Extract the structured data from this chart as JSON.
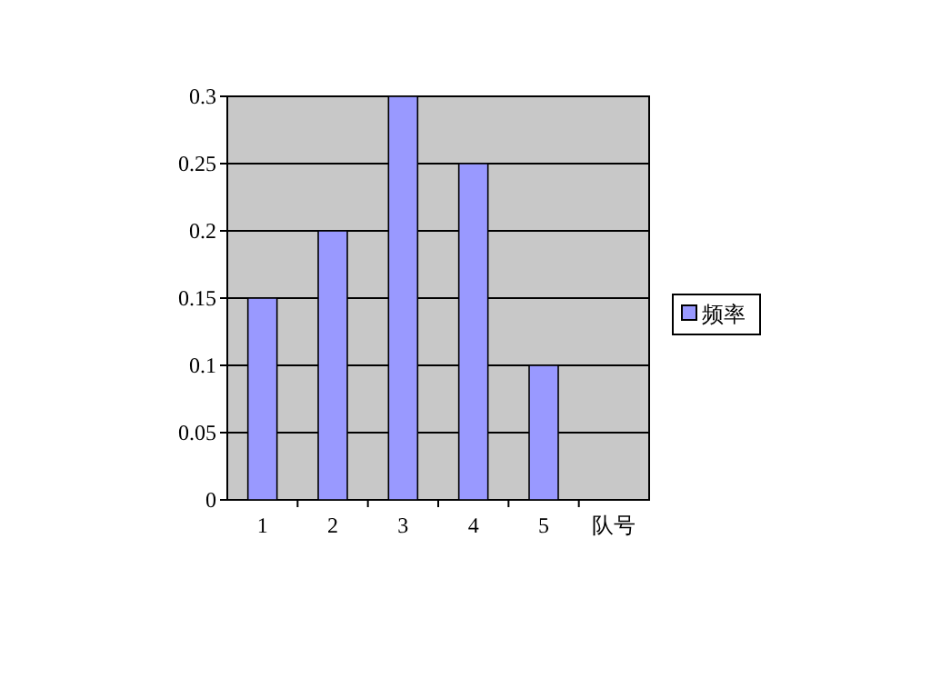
{
  "chart_data": {
    "type": "bar",
    "categories": [
      "1",
      "2",
      "3",
      "4",
      "5"
    ],
    "xlabel": "队号",
    "series": [
      {
        "name": "频率",
        "color": "#9999ff",
        "values": [
          0.15,
          0.2,
          0.3,
          0.25,
          0.1
        ]
      }
    ],
    "ylim": [
      0,
      0.3
    ],
    "yticks": [
      0,
      0.05,
      0.1,
      0.15,
      0.2,
      0.25,
      0.3
    ],
    "grid": "y",
    "legend": "right"
  }
}
